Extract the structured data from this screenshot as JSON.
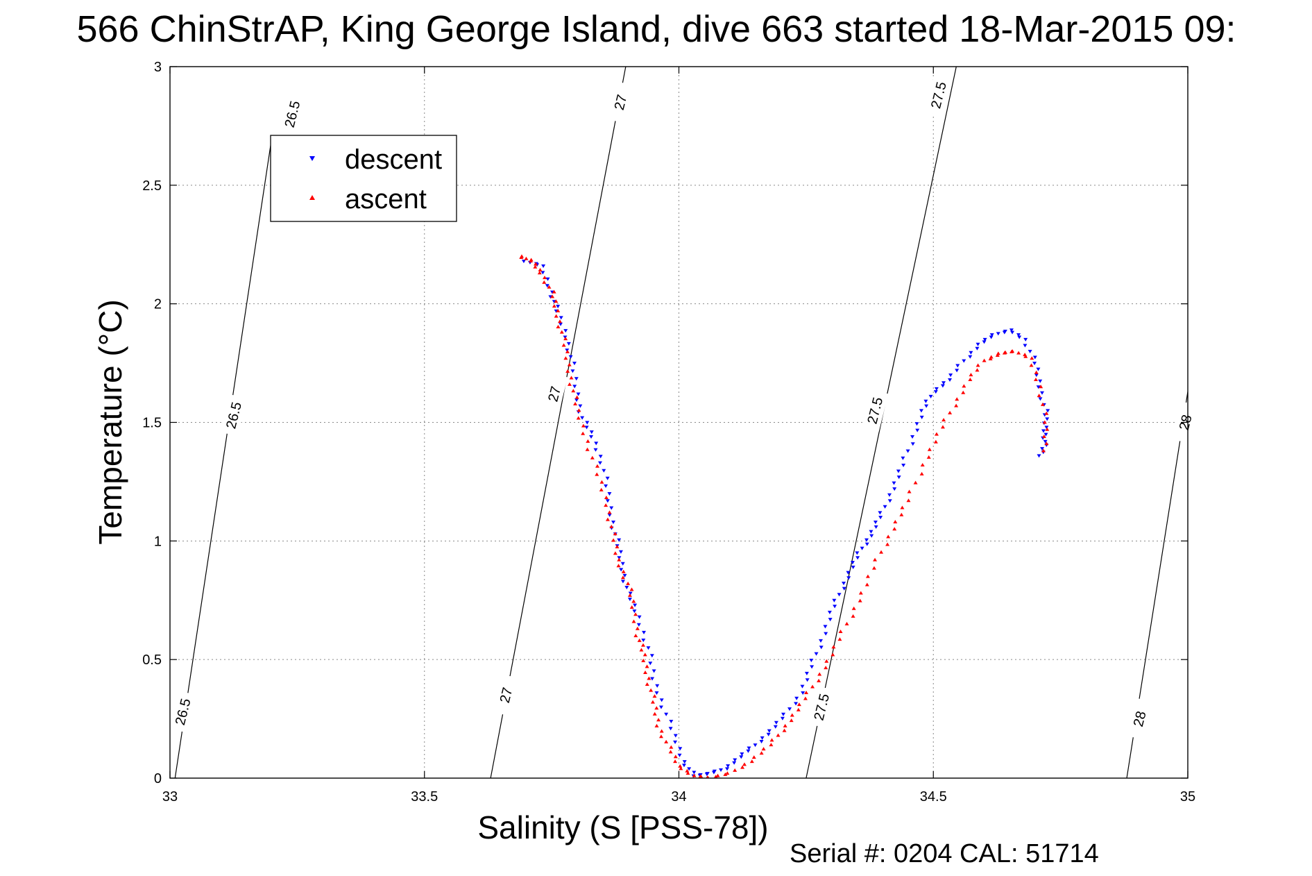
{
  "chart_data": {
    "type": "scatter",
    "title": "566 ChinStrAP, King George Island, dive 663 started 18-Mar-2015 09:",
    "xlabel": "Salinity (S [PSS-78])",
    "ylabel": "Temperature (°C)",
    "xlim": [
      33,
      35
    ],
    "ylim": [
      0,
      3
    ],
    "x_ticks": [
      "33",
      "33.5",
      "34",
      "34.5",
      "35"
    ],
    "y_ticks": [
      "0",
      "0.5",
      "1",
      "1.5",
      "2",
      "2.5",
      "3"
    ],
    "grid": true,
    "legend_position": "top-left",
    "footer": "Serial #: 0204  CAL: 51714",
    "density_contours": [
      {
        "label": "26.5",
        "points": [
          [
            33.01,
            0
          ],
          [
            33.2,
            2.7
          ]
        ]
      },
      {
        "label": "27",
        "points": [
          [
            33.63,
            0
          ],
          [
            33.9,
            3.05
          ]
        ]
      },
      {
        "label": "27.5",
        "points": [
          [
            34.25,
            0
          ],
          [
            34.55,
            3.05
          ]
        ]
      },
      {
        "label": "28",
        "points": [
          [
            34.88,
            0
          ],
          [
            35.0,
            1.63
          ]
        ]
      }
    ],
    "contour_labels": [
      {
        "text": "26.5",
        "x": 33.025,
        "y": 0.28
      },
      {
        "text": "26.5",
        "x": 33.125,
        "y": 1.53
      },
      {
        "text": "26.5",
        "x": 33.24,
        "y": 2.8
      },
      {
        "text": "27",
        "x": 33.66,
        "y": 0.35
      },
      {
        "text": "27",
        "x": 33.755,
        "y": 1.62
      },
      {
        "text": "27",
        "x": 33.885,
        "y": 2.85
      },
      {
        "text": "27.5",
        "x": 34.28,
        "y": 0.3
      },
      {
        "text": "27.5",
        "x": 34.385,
        "y": 1.55
      },
      {
        "text": "27.5",
        "x": 34.51,
        "y": 2.88
      },
      {
        "text": "28",
        "x": 34.905,
        "y": 0.25
      },
      {
        "text": "28",
        "x": 34.995,
        "y": 1.5
      }
    ],
    "series": [
      {
        "name": "descent",
        "color": "#0000ff",
        "marker": "triangle-down",
        "x": [
          33.7,
          33.73,
          33.75,
          33.76,
          33.78,
          33.79,
          33.8,
          33.81,
          33.83,
          33.85,
          33.86,
          33.87,
          33.88,
          33.89,
          33.9,
          33.92,
          33.94,
          33.95,
          33.97,
          33.99,
          34.01,
          34.03,
          34.06,
          34.09,
          34.12,
          34.15,
          34.18,
          34.21,
          34.24,
          34.26,
          34.28,
          34.3,
          34.32,
          34.34,
          34.36,
          34.38,
          34.4,
          34.42,
          34.44,
          34.46,
          34.48,
          34.5,
          34.53,
          34.56,
          34.59,
          34.62,
          34.65,
          34.68,
          34.7,
          34.71,
          34.72,
          34.72,
          34.72,
          34.71
        ],
        "y": [
          2.18,
          2.16,
          2.05,
          1.97,
          1.86,
          1.75,
          1.62,
          1.52,
          1.44,
          1.33,
          1.2,
          1.08,
          0.98,
          0.88,
          0.78,
          0.68,
          0.55,
          0.42,
          0.3,
          0.18,
          0.07,
          0.01,
          0.02,
          0.04,
          0.09,
          0.14,
          0.2,
          0.27,
          0.36,
          0.47,
          0.58,
          0.7,
          0.8,
          0.89,
          0.97,
          1.04,
          1.12,
          1.22,
          1.32,
          1.44,
          1.55,
          1.63,
          1.68,
          1.76,
          1.83,
          1.87,
          1.89,
          1.85,
          1.75,
          1.65,
          1.55,
          1.48,
          1.42,
          1.36
        ]
      },
      {
        "name": "ascent",
        "color": "#ff0000",
        "marker": "triangle-up",
        "x": [
          33.69,
          33.71,
          33.73,
          33.75,
          33.76,
          33.77,
          33.78,
          33.79,
          33.8,
          33.82,
          33.84,
          33.86,
          33.87,
          33.88,
          33.9,
          33.91,
          33.92,
          33.93,
          33.94,
          33.95,
          33.96,
          33.98,
          34.0,
          34.03,
          34.06,
          34.1,
          34.14,
          34.18,
          34.21,
          34.24,
          34.27,
          34.3,
          34.33,
          34.36,
          34.39,
          34.42,
          34.45,
          34.48,
          34.51,
          34.54,
          34.57,
          34.6,
          34.63,
          34.66,
          34.69,
          34.71,
          34.72,
          34.72
        ],
        "y": [
          2.2,
          2.18,
          2.13,
          2.05,
          1.97,
          1.88,
          1.77,
          1.66,
          1.55,
          1.42,
          1.28,
          1.15,
          1.03,
          0.92,
          0.82,
          0.72,
          0.6,
          0.52,
          0.42,
          0.32,
          0.22,
          0.13,
          0.05,
          0.01,
          0.0,
          0.02,
          0.07,
          0.14,
          0.22,
          0.31,
          0.41,
          0.52,
          0.65,
          0.78,
          0.92,
          1.05,
          1.17,
          1.32,
          1.45,
          1.57,
          1.68,
          1.76,
          1.79,
          1.8,
          1.77,
          1.65,
          1.5,
          1.38
        ]
      }
    ]
  }
}
